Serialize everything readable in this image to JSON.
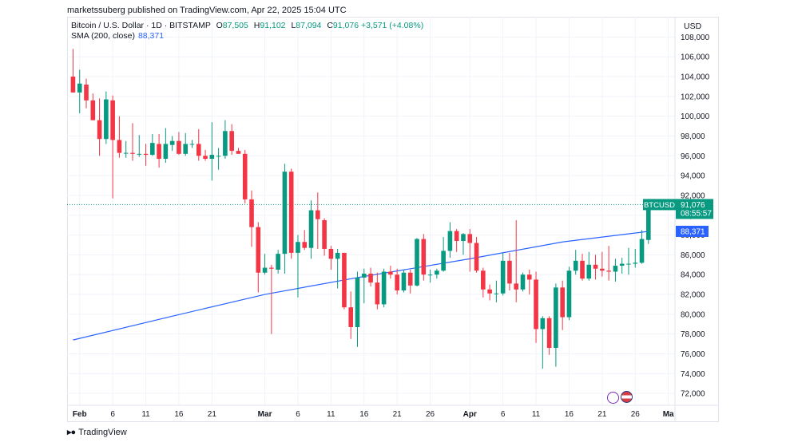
{
  "header": {
    "text": "marketssuberg published on TradingView.com, Apr 22, 2025 15:04 UTC"
  },
  "legend": {
    "symbol": "Bitcoin / U.S. Dollar · 1D · BITSTAMP",
    "o_label": "O",
    "o_value": "87,505",
    "h_label": "H",
    "h_value": "91,102",
    "l_label": "L",
    "l_value": "87,094",
    "c_label": "C",
    "c_value": "91,076",
    "change": "+3,571 (+4.08%)",
    "sma_label": "SMA (200, close)",
    "sma_value": "88,371"
  },
  "axis": {
    "currency": "USD",
    "price_label": "BTCUSD",
    "price_value": "91,076",
    "countdown": "08:55:57",
    "sma_value": "88,371"
  },
  "footer": {
    "brand": "TradingView"
  },
  "colors": {
    "up": "#089981",
    "down": "#f23645",
    "sma": "#2962ff",
    "grid": "#f0f3fa",
    "text": "#131722"
  },
  "chart_data": {
    "type": "candlestick",
    "title": "Bitcoin / U.S. Dollar · 1D · BITSTAMP",
    "ylim": [
      70800,
      109000
    ],
    "y_ticks": [
      72000,
      74000,
      76000,
      78000,
      80000,
      82000,
      84000,
      86000,
      88000,
      90000,
      92000,
      94000,
      96000,
      98000,
      100000,
      102000,
      104000,
      106000,
      108000
    ],
    "y_tick_labels": [
      "72,000",
      "74,000",
      "76,000",
      "78,000",
      "80,000",
      "82,000",
      "84,000",
      "86,000",
      "88,000",
      "90,000",
      "92,000",
      "94,000",
      "96,000",
      "98,000",
      "100,000",
      "102,000",
      "104,000",
      "106,000",
      "108,000"
    ],
    "x_tick_labels": [
      {
        "label": "Feb",
        "date": "2025-02-01"
      },
      {
        "label": "6",
        "date": "2025-02-06"
      },
      {
        "label": "11",
        "date": "2025-02-11"
      },
      {
        "label": "16",
        "date": "2025-02-16"
      },
      {
        "label": "21",
        "date": "2025-02-21"
      },
      {
        "label": "Mar",
        "date": "2025-03-01"
      },
      {
        "label": "6",
        "date": "2025-03-06"
      },
      {
        "label": "11",
        "date": "2025-03-11"
      },
      {
        "label": "16",
        "date": "2025-03-16"
      },
      {
        "label": "21",
        "date": "2025-03-21"
      },
      {
        "label": "26",
        "date": "2025-03-26"
      },
      {
        "label": "Apr",
        "date": "2025-04-01"
      },
      {
        "label": "6",
        "date": "2025-04-06"
      },
      {
        "label": "11",
        "date": "2025-04-11"
      },
      {
        "label": "16",
        "date": "2025-04-16"
      },
      {
        "label": "21",
        "date": "2025-04-21"
      },
      {
        "label": "26",
        "date": "2025-04-26"
      },
      {
        "label": "Ma",
        "date": "2025-05-01"
      }
    ],
    "x_range": [
      "2025-01-31",
      "2025-05-01"
    ],
    "price_line": 91076,
    "candles": [
      {
        "d": "2025-01-31",
        "o": 104000,
        "h": 106800,
        "l": 102400,
        "c": 102400
      },
      {
        "d": "2025-02-01",
        "o": 102400,
        "h": 104700,
        "l": 100300,
        "c": 103300
      },
      {
        "d": "2025-02-02",
        "o": 103200,
        "h": 103800,
        "l": 100800,
        "c": 101600
      },
      {
        "d": "2025-02-03",
        "o": 101600,
        "h": 102300,
        "l": 99600,
        "c": 99600
      },
      {
        "d": "2025-02-04",
        "o": 99600,
        "h": 101800,
        "l": 96000,
        "c": 97700
      },
      {
        "d": "2025-02-05",
        "o": 97700,
        "h": 102500,
        "l": 97200,
        "c": 101700
      },
      {
        "d": "2025-02-06",
        "o": 101600,
        "h": 102100,
        "l": 91700,
        "c": 97600
      },
      {
        "d": "2025-02-07",
        "o": 97600,
        "h": 100000,
        "l": 95800,
        "c": 96300
      },
      {
        "d": "2025-02-08",
        "o": 96300,
        "h": 97500,
        "l": 95800,
        "c": 96300
      },
      {
        "d": "2025-02-09",
        "o": 96300,
        "h": 99300,
        "l": 95500,
        "c": 96200
      },
      {
        "d": "2025-02-10",
        "o": 96200,
        "h": 98100,
        "l": 95900,
        "c": 96200
      },
      {
        "d": "2025-02-11",
        "o": 96200,
        "h": 97200,
        "l": 95000,
        "c": 96100
      },
      {
        "d": "2025-02-12",
        "o": 96100,
        "h": 98200,
        "l": 96000,
        "c": 97300
      },
      {
        "d": "2025-02-13",
        "o": 97200,
        "h": 98200,
        "l": 94800,
        "c": 95700
      },
      {
        "d": "2025-02-14",
        "o": 95700,
        "h": 98800,
        "l": 95300,
        "c": 97200
      },
      {
        "d": "2025-02-15",
        "o": 97100,
        "h": 98000,
        "l": 96500,
        "c": 97500
      },
      {
        "d": "2025-02-16",
        "o": 97500,
        "h": 98400,
        "l": 96100,
        "c": 96200
      },
      {
        "d": "2025-02-17",
        "o": 96200,
        "h": 98300,
        "l": 96000,
        "c": 97200
      },
      {
        "d": "2025-02-18",
        "o": 97200,
        "h": 97600,
        "l": 96800,
        "c": 97200
      },
      {
        "d": "2025-02-19",
        "o": 97200,
        "h": 98700,
        "l": 95500,
        "c": 96000
      },
      {
        "d": "2025-02-20",
        "o": 96000,
        "h": 96600,
        "l": 95500,
        "c": 95700
      },
      {
        "d": "2025-02-21",
        "o": 95700,
        "h": 99400,
        "l": 93500,
        "c": 96100
      },
      {
        "d": "2025-02-22",
        "o": 96000,
        "h": 96800,
        "l": 94600,
        "c": 96000
      },
      {
        "d": "2025-02-23",
        "o": 96000,
        "h": 99600,
        "l": 95700,
        "c": 98500
      },
      {
        "d": "2025-02-24",
        "o": 98500,
        "h": 99200,
        "l": 96100,
        "c": 96500
      },
      {
        "d": "2025-02-25",
        "o": 96500,
        "h": 96800,
        "l": 96200,
        "c": 96200
      },
      {
        "d": "2025-02-26",
        "o": 96200,
        "h": 96600,
        "l": 91200,
        "c": 91600
      },
      {
        "d": "2025-02-27",
        "o": 91600,
        "h": 92500,
        "l": 86800,
        "c": 88800
      },
      {
        "d": "2025-02-28",
        "o": 88800,
        "h": 89300,
        "l": 82200,
        "c": 84200
      },
      {
        "d": "2025-03-01",
        "o": 84200,
        "h": 86100,
        "l": 84000,
        "c": 84700
      },
      {
        "d": "2025-03-02",
        "o": 84700,
        "h": 85000,
        "l": 78000,
        "c": 84600
      },
      {
        "d": "2025-03-03",
        "o": 84500,
        "h": 86500,
        "l": 84100,
        "c": 86100
      },
      {
        "d": "2025-03-04",
        "o": 86100,
        "h": 95200,
        "l": 84100,
        "c": 94400
      },
      {
        "d": "2025-03-05",
        "o": 94400,
        "h": 94700,
        "l": 85600,
        "c": 86200
      },
      {
        "d": "2025-03-06",
        "o": 86200,
        "h": 88000,
        "l": 81700,
        "c": 87300
      },
      {
        "d": "2025-03-07",
        "o": 87300,
        "h": 88500,
        "l": 86500,
        "c": 86700
      },
      {
        "d": "2025-03-08",
        "o": 86700,
        "h": 91500,
        "l": 85600,
        "c": 90500
      },
      {
        "d": "2025-03-09",
        "o": 90500,
        "h": 92300,
        "l": 86600,
        "c": 89600
      },
      {
        "d": "2025-03-10",
        "o": 89500,
        "h": 89700,
        "l": 85900,
        "c": 86600
      },
      {
        "d": "2025-03-11",
        "o": 86600,
        "h": 86900,
        "l": 84500,
        "c": 85600
      },
      {
        "d": "2025-03-12",
        "o": 85600,
        "h": 86600,
        "l": 82600,
        "c": 86200
      },
      {
        "d": "2025-03-13",
        "o": 86200,
        "h": 86200,
        "l": 80500,
        "c": 80700
      },
      {
        "d": "2025-03-14",
        "o": 80700,
        "h": 82300,
        "l": 77500,
        "c": 78700
      },
      {
        "d": "2025-03-15",
        "o": 78700,
        "h": 84300,
        "l": 76700,
        "c": 83700
      },
      {
        "d": "2025-03-16",
        "o": 83700,
        "h": 84600,
        "l": 81100,
        "c": 84100
      },
      {
        "d": "2025-03-17",
        "o": 84100,
        "h": 84700,
        "l": 82800,
        "c": 83200
      },
      {
        "d": "2025-03-18",
        "o": 83200,
        "h": 84200,
        "l": 80500,
        "c": 81000
      },
      {
        "d": "2025-03-19",
        "o": 81000,
        "h": 84600,
        "l": 80700,
        "c": 84300
      },
      {
        "d": "2025-03-20",
        "o": 84300,
        "h": 84900,
        "l": 83600,
        "c": 84000
      },
      {
        "d": "2025-03-21",
        "o": 84000,
        "h": 84600,
        "l": 82000,
        "c": 82400
      },
      {
        "d": "2025-03-22",
        "o": 82400,
        "h": 84500,
        "l": 82200,
        "c": 84200
      },
      {
        "d": "2025-03-23",
        "o": 84200,
        "h": 84500,
        "l": 82100,
        "c": 82900
      },
      {
        "d": "2025-03-24",
        "o": 82900,
        "h": 87700,
        "l": 82800,
        "c": 87600
      },
      {
        "d": "2025-03-25",
        "o": 87600,
        "h": 88100,
        "l": 83400,
        "c": 84000
      },
      {
        "d": "2025-03-26",
        "o": 84000,
        "h": 84500,
        "l": 83200,
        "c": 84000
      },
      {
        "d": "2025-03-27",
        "o": 84000,
        "h": 84600,
        "l": 83600,
        "c": 84400
      },
      {
        "d": "2025-03-28",
        "o": 84400,
        "h": 87800,
        "l": 84300,
        "c": 86400
      },
      {
        "d": "2025-03-29",
        "o": 86400,
        "h": 89300,
        "l": 85700,
        "c": 88400
      },
      {
        "d": "2025-03-30",
        "o": 88400,
        "h": 88600,
        "l": 86300,
        "c": 87400
      },
      {
        "d": "2025-03-31",
        "o": 87400,
        "h": 88200,
        "l": 86000,
        "c": 88100
      },
      {
        "d": "2025-04-01",
        "o": 88100,
        "h": 88600,
        "l": 84300,
        "c": 87200
      },
      {
        "d": "2025-04-02",
        "o": 87200,
        "h": 87800,
        "l": 84200,
        "c": 84400
      },
      {
        "d": "2025-04-03",
        "o": 84400,
        "h": 84700,
        "l": 81700,
        "c": 82500
      },
      {
        "d": "2025-04-04",
        "o": 82500,
        "h": 83000,
        "l": 81400,
        "c": 82100
      },
      {
        "d": "2025-04-05",
        "o": 82100,
        "h": 83400,
        "l": 81200,
        "c": 82100
      },
      {
        "d": "2025-04-06",
        "o": 82100,
        "h": 86200,
        "l": 81900,
        "c": 85400
      },
      {
        "d": "2025-04-07",
        "o": 85400,
        "h": 86200,
        "l": 82400,
        "c": 83100
      },
      {
        "d": "2025-04-08",
        "o": 83100,
        "h": 89500,
        "l": 81200,
        "c": 82500
      },
      {
        "d": "2025-04-09",
        "o": 82500,
        "h": 84200,
        "l": 82300,
        "c": 84000
      },
      {
        "d": "2025-04-10",
        "o": 84000,
        "h": 84500,
        "l": 82000,
        "c": 83500
      },
      {
        "d": "2025-04-11",
        "o": 83500,
        "h": 84300,
        "l": 77100,
        "c": 78500
      },
      {
        "d": "2025-04-12",
        "o": 78500,
        "h": 79800,
        "l": 74500,
        "c": 79600
      },
      {
        "d": "2025-04-13",
        "o": 79600,
        "h": 79800,
        "l": 75900,
        "c": 76600
      },
      {
        "d": "2025-04-14",
        "o": 76600,
        "h": 83100,
        "l": 74700,
        "c": 82700
      },
      {
        "d": "2025-04-15",
        "o": 82700,
        "h": 83400,
        "l": 78400,
        "c": 79700
      },
      {
        "d": "2025-04-16",
        "o": 79700,
        "h": 84800,
        "l": 79400,
        "c": 84400
      },
      {
        "d": "2025-04-17",
        "o": 84400,
        "h": 86500,
        "l": 84000,
        "c": 85400
      },
      {
        "d": "2025-04-18",
        "o": 85400,
        "h": 86100,
        "l": 83400,
        "c": 83600
      },
      {
        "d": "2025-04-19",
        "o": 83600,
        "h": 86300,
        "l": 83400,
        "c": 85000
      },
      {
        "d": "2025-04-20",
        "o": 85000,
        "h": 86000,
        "l": 83500,
        "c": 84600
      },
      {
        "d": "2025-04-21",
        "o": 84600,
        "h": 86300,
        "l": 83800,
        "c": 84400
      },
      {
        "d": "2025-04-22",
        "o": 84400,
        "h": 86900,
        "l": 83400,
        "c": 84300
      },
      {
        "d": "2025-04-23",
        "o": 84300,
        "h": 85600,
        "l": 83300,
        "c": 84900
      },
      {
        "d": "2025-04-24",
        "o": 84900,
        "h": 85700,
        "l": 84100,
        "c": 85100
      },
      {
        "d": "2025-04-25",
        "o": 85100,
        "h": 86700,
        "l": 84000,
        "c": 85100
      },
      {
        "d": "2025-04-26",
        "o": 85100,
        "h": 86600,
        "l": 84700,
        "c": 85200
      },
      {
        "d": "2025-04-27",
        "o": 85200,
        "h": 88500,
        "l": 85100,
        "c": 87600
      },
      {
        "d": "2025-04-28",
        "o": 87500,
        "h": 91102,
        "l": 87094,
        "c": 91076
      }
    ],
    "sma": {
      "name": "SMA (200, close)",
      "points": [
        {
          "d": "2025-01-31",
          "v": 77400
        },
        {
          "d": "2025-02-15",
          "v": 79800
        },
        {
          "d": "2025-03-01",
          "v": 82000
        },
        {
          "d": "2025-03-15",
          "v": 83700
        },
        {
          "d": "2025-04-01",
          "v": 85600
        },
        {
          "d": "2025-04-15",
          "v": 87300
        },
        {
          "d": "2025-04-28",
          "v": 88371
        }
      ]
    }
  }
}
